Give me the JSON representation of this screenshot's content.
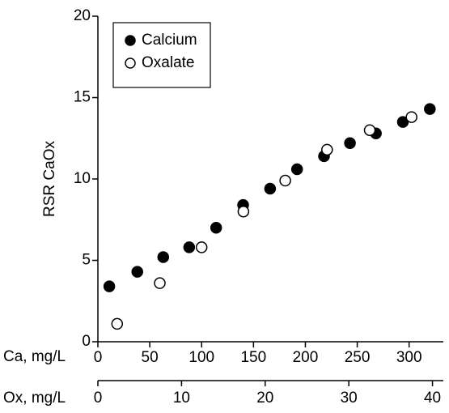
{
  "chart_data": {
    "type": "scatter",
    "y_label": "RSR CaOx",
    "ylim": [
      0,
      20
    ],
    "yticks": [
      0,
      5,
      10,
      15,
      20
    ],
    "x_label": "Ca, mg/L",
    "xlim": [
      0,
      333
    ],
    "xticks": [
      0,
      50,
      100,
      150,
      200,
      250,
      300
    ],
    "x2_label": "Ox, mg/L",
    "x2lim": [
      0,
      41.3
    ],
    "x2ticks": [
      0,
      10,
      20,
      30,
      40
    ],
    "legend": "upper left",
    "series": [
      {
        "name": "Calcium",
        "color": "#000000",
        "marker": "filled",
        "x": [
          11,
          38,
          63,
          88,
          114,
          140,
          166,
          192,
          218,
          243,
          268,
          294,
          320
        ],
        "values": [
          3.4,
          4.3,
          5.2,
          5.8,
          7.0,
          8.4,
          9.4,
          10.6,
          11.4,
          12.2,
          12.8,
          13.5,
          14.3
        ]
      },
      {
        "name": "Oxalate",
        "color": "#000000",
        "marker": "open",
        "axis": "x2",
        "x": [
          2.3,
          7.4,
          12.4,
          17.4,
          22.4,
          27.4,
          32.5,
          37.5
        ],
        "values": [
          1.1,
          3.6,
          5.8,
          8.0,
          9.9,
          11.8,
          13.0,
          13.8
        ]
      }
    ]
  }
}
